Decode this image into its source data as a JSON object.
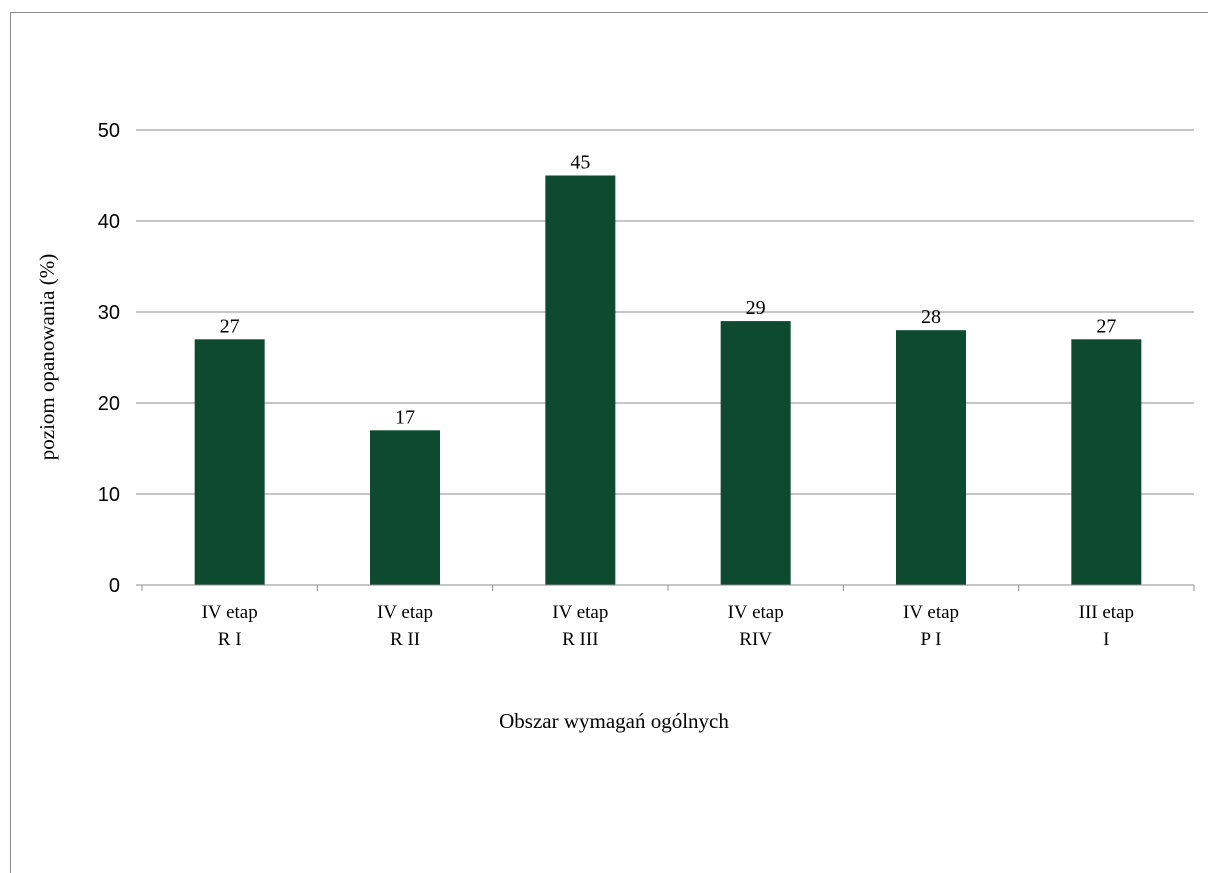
{
  "chart_data": {
    "type": "bar",
    "categories": [
      [
        "IV etap",
        "R I"
      ],
      [
        "IV etap",
        "R II"
      ],
      [
        "IV etap",
        "R III"
      ],
      [
        "IV etap",
        "RIV"
      ],
      [
        "IV etap",
        "P I"
      ],
      [
        "III etap",
        "I"
      ]
    ],
    "values": [
      27,
      17,
      45,
      29,
      28,
      27
    ],
    "data_labels": [
      "27",
      "17",
      "45",
      "29",
      "28",
      "27"
    ],
    "ylabel": "poziom opanowania (%)",
    "xlabel": "Obszar wymagań ogólnych",
    "ylim": [
      0,
      50
    ],
    "yticks": [
      "0",
      "10",
      "20",
      "30",
      "40",
      "50"
    ],
    "grid": true,
    "bar_color": "#0d4a30",
    "gridline_color": "#8c8c8c"
  }
}
